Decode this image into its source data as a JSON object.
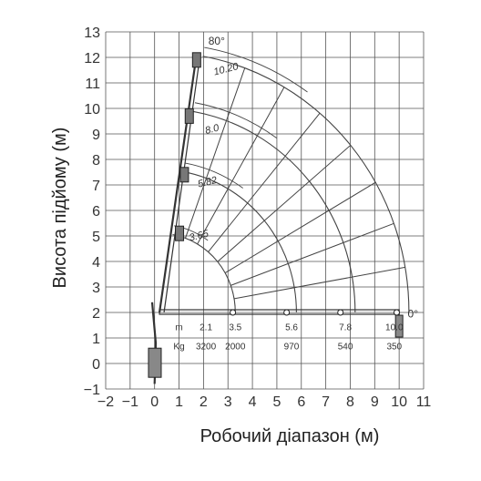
{
  "chart_data": {
    "type": "diagram",
    "xlabel": "Робочий діапазон (м)",
    "ylabel": "Висота підйому (м)",
    "xlim": [
      -2,
      11
    ],
    "ylim": [
      -1,
      13
    ],
    "x_ticks": [
      "−2",
      "−1",
      "0",
      "1",
      "2",
      "3",
      "4",
      "5",
      "6",
      "7",
      "8",
      "9",
      "10",
      "11"
    ],
    "y_ticks": [
      "−1",
      "0",
      "1",
      "2",
      "3",
      "4",
      "5",
      "6",
      "7",
      "8",
      "9",
      "10",
      "11",
      "12",
      "13"
    ],
    "grid": true,
    "angle_labels": {
      "top": "80°",
      "bottom": "0°"
    },
    "boom_lengths": [
      {
        "label": "10.20",
        "radius": 10.2
      },
      {
        "label": "8.0",
        "radius": 8.0
      },
      {
        "label": "5.82",
        "radius": 5.82
      },
      {
        "label": "3.65",
        "radius": 3.65
      }
    ],
    "load_table": {
      "unit_reach": "m",
      "unit_load": "Kg",
      "reach": [
        "2.1",
        "3.5",
        "5.6",
        "7.8",
        "10.0"
      ],
      "load": [
        "3200",
        "2000",
        "970",
        "540",
        "350"
      ]
    }
  }
}
